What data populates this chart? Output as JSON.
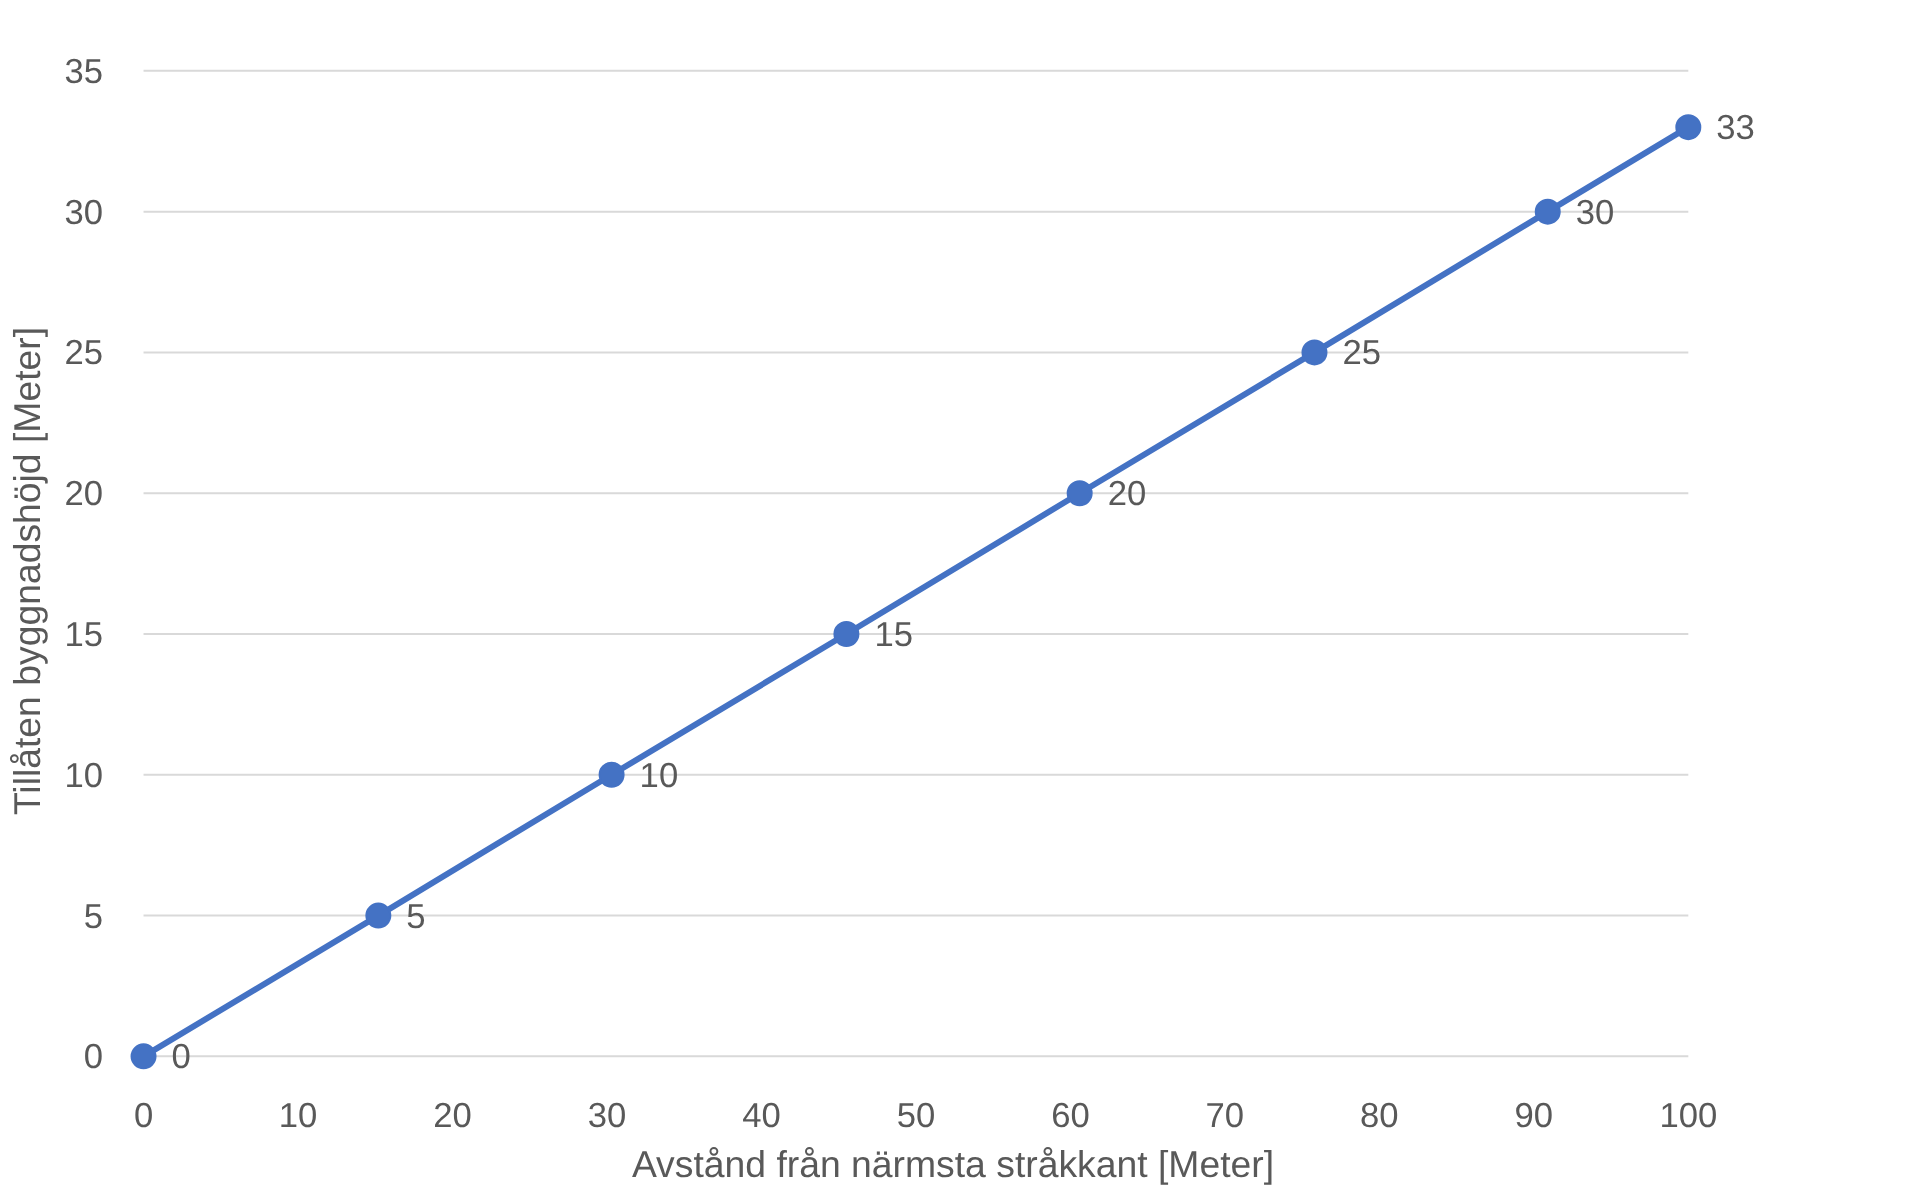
{
  "chart_data": {
    "type": "line",
    "xlabel": "Avstånd från närmsta stråkkant [Meter]",
    "ylabel": "Tillåten byggnadshöjd [Meter]",
    "x": [
      0,
      15.2,
      30.3,
      45.5,
      60.6,
      75.8,
      90.9,
      100
    ],
    "series": [
      {
        "color": "#4472c4",
        "values": [
          0,
          5,
          10,
          15,
          20,
          25,
          30,
          33
        ]
      }
    ],
    "xlim": [
      0,
      100
    ],
    "xticks": [
      0,
      10,
      20,
      30,
      40,
      50,
      60,
      70,
      80,
      90,
      100
    ],
    "ylim": [
      0,
      35
    ],
    "yticks": [
      0,
      5,
      10,
      15,
      20,
      25,
      30,
      35
    ],
    "grid": "y",
    "marker": "circle",
    "line_style": "solid",
    "data_labels": true
  }
}
